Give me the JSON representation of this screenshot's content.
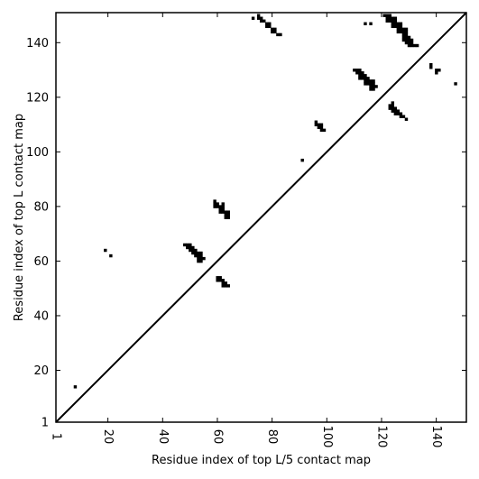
{
  "chart_data": {
    "type": "heatmap",
    "title": "",
    "xlabel": "Residue index of top L/5 contact map",
    "ylabel": "Residue index of top L contact map",
    "xlim": [
      1,
      151
    ],
    "ylim": [
      1,
      151
    ],
    "x_ticks": [
      1,
      20,
      40,
      60,
      80,
      100,
      120,
      140
    ],
    "y_ticks": [
      1,
      20,
      40,
      60,
      80,
      100,
      120,
      140
    ],
    "x_tick_rotation": 90,
    "diagonal": true,
    "grid": false,
    "legend": "none",
    "colors": {
      "contact": "#000000",
      "background": "#ffffff"
    },
    "contacts": [
      [
        8,
        14
      ],
      [
        19,
        64
      ],
      [
        21,
        62
      ],
      [
        48,
        66
      ],
      [
        49,
        66
      ],
      [
        50,
        66
      ],
      [
        49,
        65
      ],
      [
        50,
        65
      ],
      [
        51,
        65
      ],
      [
        50,
        64
      ],
      [
        51,
        64
      ],
      [
        52,
        64
      ],
      [
        51,
        63
      ],
      [
        52,
        63
      ],
      [
        53,
        63
      ],
      [
        54,
        63
      ],
      [
        52,
        62
      ],
      [
        53,
        62
      ],
      [
        54,
        62
      ],
      [
        53,
        61
      ],
      [
        54,
        61
      ],
      [
        55,
        61
      ],
      [
        53,
        60
      ],
      [
        54,
        60
      ],
      [
        59,
        82
      ],
      [
        59,
        81
      ],
      [
        60,
        81
      ],
      [
        62,
        81
      ],
      [
        59,
        80
      ],
      [
        60,
        80
      ],
      [
        61,
        80
      ],
      [
        62,
        80
      ],
      [
        61,
        79
      ],
      [
        62,
        79
      ],
      [
        61,
        78
      ],
      [
        62,
        78
      ],
      [
        63,
        78
      ],
      [
        64,
        78
      ],
      [
        63,
        77
      ],
      [
        64,
        77
      ],
      [
        63,
        76
      ],
      [
        64,
        76
      ],
      [
        60,
        54
      ],
      [
        61,
        54
      ],
      [
        60,
        53
      ],
      [
        61,
        53
      ],
      [
        62,
        53
      ],
      [
        62,
        52
      ],
      [
        63,
        52
      ],
      [
        62,
        51
      ],
      [
        63,
        51
      ],
      [
        64,
        51
      ],
      [
        73,
        149
      ],
      [
        75,
        150
      ],
      [
        75,
        149
      ],
      [
        76,
        149
      ],
      [
        76,
        148
      ],
      [
        77,
        148
      ],
      [
        78,
        147
      ],
      [
        79,
        147
      ],
      [
        78,
        146
      ],
      [
        79,
        146
      ],
      [
        80,
        145
      ],
      [
        81,
        145
      ],
      [
        80,
        144
      ],
      [
        81,
        144
      ],
      [
        82,
        143
      ],
      [
        83,
        143
      ],
      [
        91,
        97
      ],
      [
        96,
        111
      ],
      [
        96,
        110
      ],
      [
        97,
        110
      ],
      [
        98,
        110
      ],
      [
        97,
        109
      ],
      [
        98,
        109
      ],
      [
        98,
        108
      ],
      [
        99,
        108
      ],
      [
        110,
        130
      ],
      [
        111,
        130
      ],
      [
        112,
        130
      ],
      [
        111,
        129
      ],
      [
        112,
        129
      ],
      [
        113,
        129
      ],
      [
        112,
        128
      ],
      [
        113,
        128
      ],
      [
        114,
        128
      ],
      [
        112,
        127
      ],
      [
        113,
        127
      ],
      [
        114,
        127
      ],
      [
        115,
        127
      ],
      [
        114,
        126
      ],
      [
        115,
        126
      ],
      [
        116,
        126
      ],
      [
        117,
        126
      ],
      [
        114,
        125
      ],
      [
        115,
        125
      ],
      [
        116,
        125
      ],
      [
        117,
        125
      ],
      [
        116,
        124
      ],
      [
        117,
        124
      ],
      [
        118,
        124
      ],
      [
        116,
        123
      ],
      [
        117,
        123
      ],
      [
        114,
        147
      ],
      [
        116,
        147
      ],
      [
        121,
        150
      ],
      [
        122,
        150
      ],
      [
        123,
        150
      ],
      [
        122,
        149
      ],
      [
        123,
        149
      ],
      [
        124,
        149
      ],
      [
        125,
        149
      ],
      [
        122,
        148
      ],
      [
        123,
        148
      ],
      [
        124,
        148
      ],
      [
        125,
        148
      ],
      [
        124,
        147
      ],
      [
        125,
        147
      ],
      [
        126,
        147
      ],
      [
        127,
        147
      ],
      [
        124,
        146
      ],
      [
        125,
        146
      ],
      [
        126,
        146
      ],
      [
        127,
        146
      ],
      [
        126,
        145
      ],
      [
        127,
        145
      ],
      [
        128,
        145
      ],
      [
        129,
        145
      ],
      [
        126,
        144
      ],
      [
        127,
        144
      ],
      [
        128,
        144
      ],
      [
        129,
        144
      ],
      [
        128,
        143
      ],
      [
        129,
        143
      ],
      [
        128,
        142
      ],
      [
        129,
        142
      ],
      [
        130,
        142
      ],
      [
        128,
        141
      ],
      [
        129,
        141
      ],
      [
        130,
        141
      ],
      [
        131,
        141
      ],
      [
        129,
        140
      ],
      [
        130,
        140
      ],
      [
        131,
        140
      ],
      [
        130,
        139
      ],
      [
        131,
        139
      ],
      [
        132,
        139
      ],
      [
        133,
        139
      ],
      [
        124,
        118
      ],
      [
        123,
        117
      ],
      [
        124,
        117
      ],
      [
        123,
        116
      ],
      [
        124,
        116
      ],
      [
        125,
        116
      ],
      [
        124,
        115
      ],
      [
        125,
        115
      ],
      [
        126,
        115
      ],
      [
        125,
        114
      ],
      [
        126,
        114
      ],
      [
        127,
        114
      ],
      [
        127,
        113
      ],
      [
        128,
        113
      ],
      [
        129,
        112
      ],
      [
        138,
        132
      ],
      [
        138,
        131
      ],
      [
        140,
        130
      ],
      [
        141,
        130
      ],
      [
        140,
        129
      ],
      [
        147,
        125
      ]
    ]
  }
}
